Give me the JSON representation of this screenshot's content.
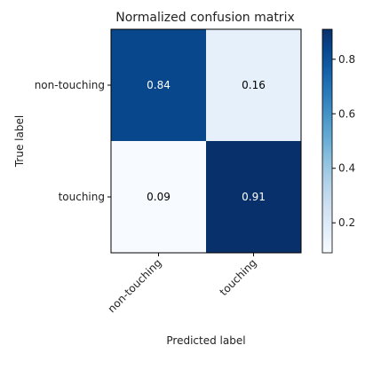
{
  "chart_data": {
    "type": "heatmap",
    "title": "Normalized confusion matrix",
    "xlabel": "Predicted label",
    "ylabel": "True label",
    "x_categories": [
      "non-touching",
      "touching"
    ],
    "y_categories": [
      "non-touching",
      "touching"
    ],
    "values": [
      [
        0.84,
        0.16
      ],
      [
        0.09,
        0.91
      ]
    ],
    "value_labels": [
      [
        "0.84",
        "0.16"
      ],
      [
        "0.09",
        "0.91"
      ]
    ],
    "colormap": "Blues",
    "colorbar": {
      "range": [
        0.09,
        0.91
      ],
      "ticks": [
        0.2,
        0.4,
        0.6,
        0.8
      ],
      "tick_labels": [
        "0.2",
        "0.4",
        "0.6",
        "0.8"
      ]
    },
    "colors": {
      "text_dark": "#000000",
      "text_light": "#ffffff",
      "axis": "#000000"
    }
  }
}
